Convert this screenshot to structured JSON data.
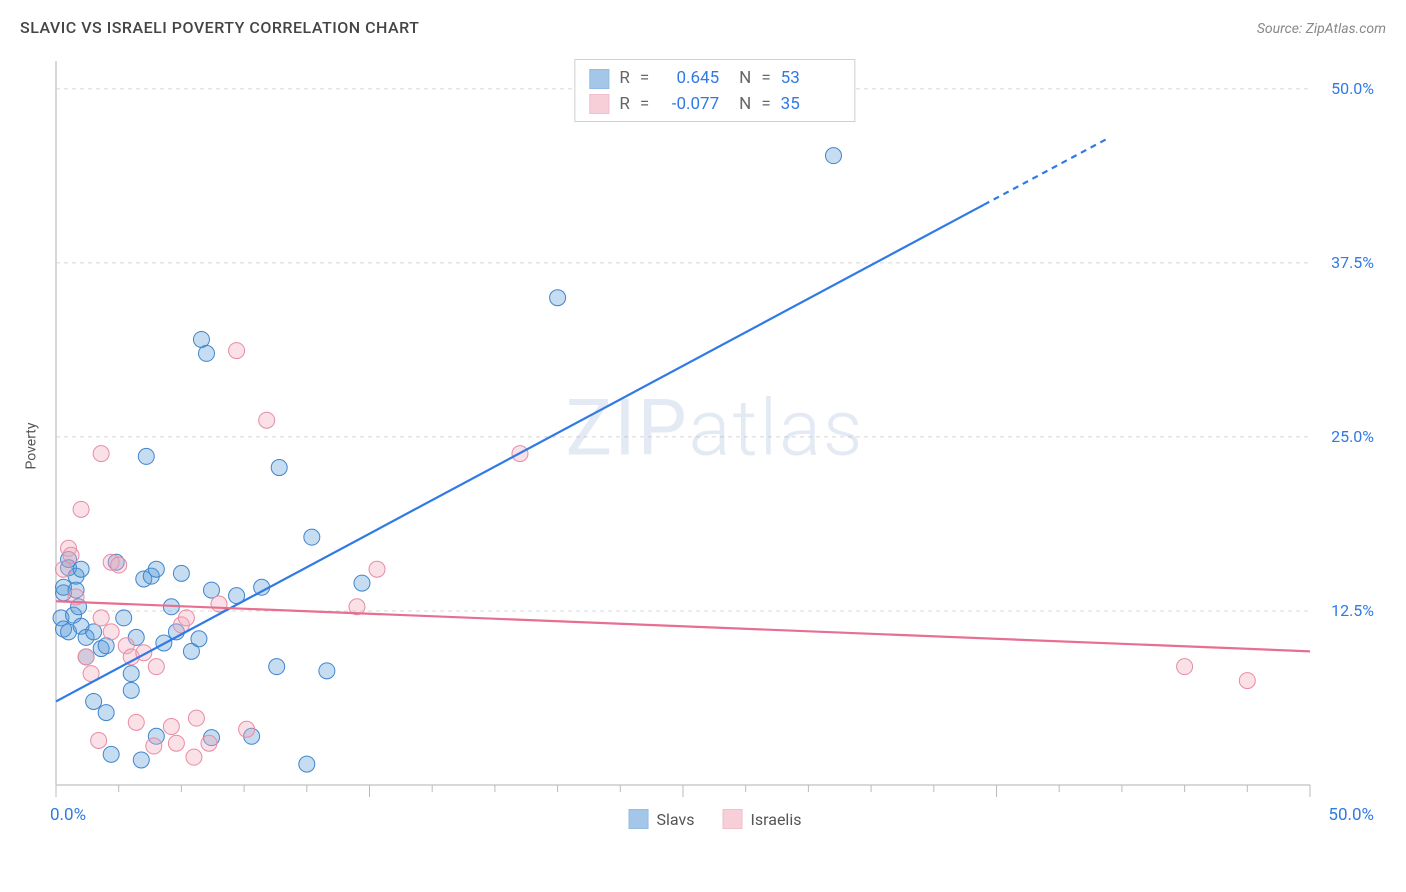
{
  "title": "SLAVIC VS ISRAELI POVERTY CORRELATION CHART",
  "source_prefix": "Source: ",
  "source_name": "ZipAtlas.com",
  "y_axis_label": "Poverty",
  "watermark": {
    "part1": "ZIP",
    "part2": "atlas"
  },
  "chart": {
    "type": "scatter",
    "background_color": "#ffffff",
    "axis_color": "#cccccc",
    "grid_color": "#d8d8d8",
    "grid_dash": "4,4",
    "tick_color": "#bbbbbb",
    "label_color": "#2f7ae5",
    "xlim": [
      0,
      50
    ],
    "ylim": [
      0,
      52
    ],
    "x_ticks_major": [
      0,
      12.5,
      25,
      37.5,
      50
    ],
    "x_ticks_minor_step": 2.5,
    "y_ticks_major": [
      12.5,
      25.0,
      37.5,
      50.0
    ],
    "x_axis_end_labels": {
      "left": "0.0%",
      "right": "50.0%"
    },
    "y_tick_labels": [
      "12.5%",
      "25.0%",
      "37.5%",
      "50.0%"
    ],
    "marker_radius": 8,
    "marker_stroke_width": 1,
    "marker_fill_opacity": 0.35,
    "line_width": 2.2,
    "series": [
      {
        "key": "slavs",
        "label": "Slavs",
        "color": "#5a9bd8",
        "stroke": "#3f86cf",
        "line_color": "#2f7ae5",
        "R": "0.645",
        "N": "53",
        "trend": {
          "x1": 0,
          "y1": 6.0,
          "x2": 42,
          "y2": 46.5,
          "dash_after_x": 37
        },
        "points": [
          [
            0.2,
            12.0
          ],
          [
            0.3,
            13.8
          ],
          [
            0.3,
            11.2
          ],
          [
            0.3,
            14.2
          ],
          [
            0.5,
            16.2
          ],
          [
            0.5,
            15.6
          ],
          [
            0.5,
            11.0
          ],
          [
            0.7,
            12.2
          ],
          [
            0.8,
            14.0
          ],
          [
            0.8,
            15.0
          ],
          [
            0.9,
            12.8
          ],
          [
            1.0,
            11.4
          ],
          [
            1.0,
            15.5
          ],
          [
            1.2,
            10.6
          ],
          [
            1.2,
            9.2
          ],
          [
            1.5,
            11.0
          ],
          [
            1.5,
            6.0
          ],
          [
            1.8,
            9.8
          ],
          [
            2.0,
            10.0
          ],
          [
            2.0,
            5.2
          ],
          [
            2.2,
            2.2
          ],
          [
            2.4,
            16.0
          ],
          [
            2.7,
            12.0
          ],
          [
            3.0,
            6.8
          ],
          [
            3.0,
            8.0
          ],
          [
            3.2,
            10.6
          ],
          [
            3.4,
            1.8
          ],
          [
            3.5,
            14.8
          ],
          [
            3.6,
            23.6
          ],
          [
            3.8,
            15.0
          ],
          [
            4.0,
            15.5
          ],
          [
            4.0,
            3.5
          ],
          [
            4.3,
            10.2
          ],
          [
            4.6,
            12.8
          ],
          [
            4.8,
            11.0
          ],
          [
            5.0,
            15.2
          ],
          [
            5.4,
            9.6
          ],
          [
            5.7,
            10.5
          ],
          [
            5.8,
            32.0
          ],
          [
            6.0,
            31.0
          ],
          [
            6.2,
            3.4
          ],
          [
            6.2,
            14.0
          ],
          [
            7.2,
            13.6
          ],
          [
            7.8,
            3.5
          ],
          [
            8.2,
            14.2
          ],
          [
            8.8,
            8.5
          ],
          [
            8.9,
            22.8
          ],
          [
            10.0,
            1.5
          ],
          [
            10.2,
            17.8
          ],
          [
            10.8,
            8.2
          ],
          [
            12.2,
            14.5
          ],
          [
            20.0,
            35.0
          ],
          [
            31.0,
            45.2
          ]
        ]
      },
      {
        "key": "israelis",
        "label": "Israelis",
        "color": "#f2a8ba",
        "stroke": "#e98ba3",
        "line_color": "#e76f91",
        "R": "-0.077",
        "N": "35",
        "trend": {
          "x1": 0,
          "y1": 13.2,
          "x2": 50,
          "y2": 9.6,
          "dash_after_x": 999
        },
        "points": [
          [
            0.3,
            15.5
          ],
          [
            0.5,
            17.0
          ],
          [
            0.6,
            16.5
          ],
          [
            0.8,
            13.5
          ],
          [
            1.0,
            19.8
          ],
          [
            1.2,
            9.2
          ],
          [
            1.4,
            8.0
          ],
          [
            1.7,
            3.2
          ],
          [
            1.8,
            23.8
          ],
          [
            1.8,
            12.0
          ],
          [
            2.2,
            16.0
          ],
          [
            2.2,
            11.0
          ],
          [
            2.5,
            15.8
          ],
          [
            2.8,
            10.0
          ],
          [
            3.0,
            9.2
          ],
          [
            3.2,
            4.5
          ],
          [
            3.5,
            9.5
          ],
          [
            3.9,
            2.8
          ],
          [
            4.0,
            8.5
          ],
          [
            4.6,
            4.2
          ],
          [
            4.8,
            3.0
          ],
          [
            5.0,
            11.5
          ],
          [
            5.2,
            12.0
          ],
          [
            5.5,
            2.0
          ],
          [
            5.6,
            4.8
          ],
          [
            6.1,
            3.0
          ],
          [
            6.5,
            13.0
          ],
          [
            7.2,
            31.2
          ],
          [
            7.6,
            4.0
          ],
          [
            8.4,
            26.2
          ],
          [
            12.0,
            12.8
          ],
          [
            12.8,
            15.5
          ],
          [
            18.5,
            23.8
          ],
          [
            45.0,
            8.5
          ],
          [
            47.5,
            7.5
          ]
        ]
      }
    ]
  },
  "legend_top": {
    "r_label": "R",
    "n_label": "N",
    "eq": "="
  },
  "legend_bottom": {
    "items": [
      "Slavs",
      "Israelis"
    ]
  }
}
